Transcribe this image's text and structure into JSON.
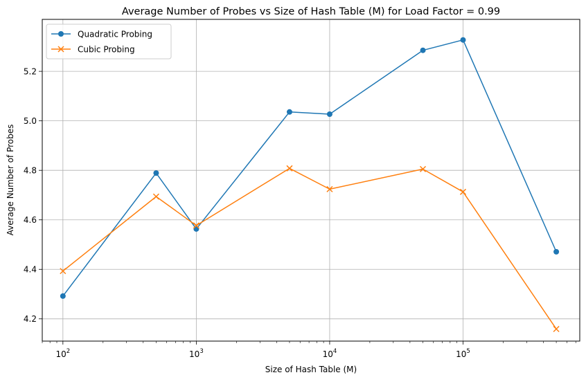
{
  "chart_data": {
    "type": "line",
    "title": "Average Number of Probes vs Size of Hash Table (M) for Load Factor = 0.99",
    "xlabel": "Size of Hash Table (M)",
    "ylabel": "Average Number of Probes",
    "xscale": "log",
    "xlim": [
      70,
      750000
    ],
    "ylim": [
      4.11,
      5.41
    ],
    "x": [
      100,
      500,
      1000,
      5000,
      10000,
      50000,
      100000,
      500000
    ],
    "x_ticks": [
      {
        "value": 100,
        "base": "10",
        "exp": "2"
      },
      {
        "value": 1000,
        "base": "10",
        "exp": "3"
      },
      {
        "value": 10000,
        "base": "10",
        "exp": "4"
      },
      {
        "value": 100000,
        "base": "10",
        "exp": "5"
      }
    ],
    "y_ticks": [
      4.2,
      4.4,
      4.6,
      4.8,
      5.0,
      5.2
    ],
    "y_tick_labels": [
      "4.2",
      "4.4",
      "4.6",
      "4.8",
      "5.0",
      "5.2"
    ],
    "grid": true,
    "legend_position": "top-left",
    "series": [
      {
        "name": "Quadratic Probing",
        "color": "#1f77b4",
        "marker": "circle",
        "values": [
          4.292,
          4.789,
          4.563,
          5.036,
          5.027,
          5.285,
          5.327,
          4.471
        ]
      },
      {
        "name": "Cubic Probing",
        "color": "#ff7f0e",
        "marker": "x",
        "values": [
          4.393,
          4.694,
          4.577,
          4.808,
          4.724,
          4.805,
          4.713,
          4.159
        ]
      }
    ]
  }
}
